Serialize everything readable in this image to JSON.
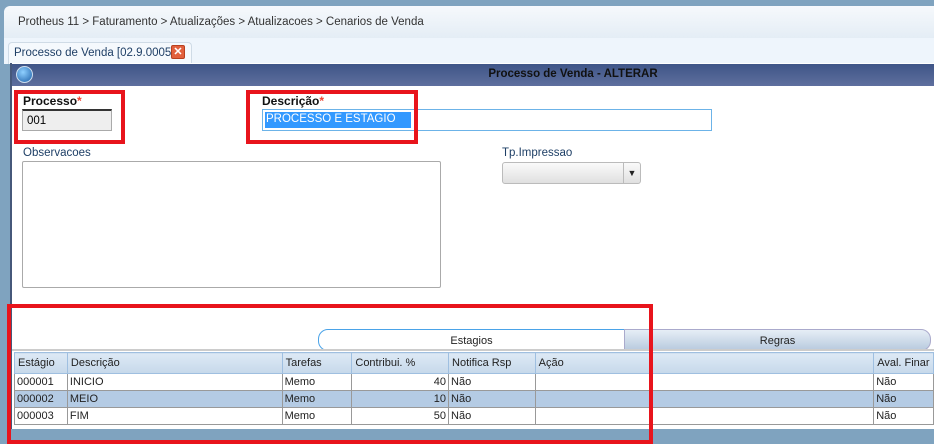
{
  "breadcrumb": "Protheus 11 > Faturamento > Atualizações > Atualizacoes > Cenarios de Venda",
  "tab": {
    "label": "Processo de Venda [02.9.0005]",
    "close": "✕"
  },
  "window": {
    "title": "Processo de Venda - ALTERAR"
  },
  "form": {
    "processo": {
      "label": "Processo",
      "required": "*",
      "value": "001"
    },
    "descricao": {
      "label": "Descrição",
      "required": "*",
      "value": "PROCESSO E ESTAGIO"
    },
    "observacoes": {
      "label": "Observacoes",
      "value": ""
    },
    "tp_impressao": {
      "label": "Tp.Impressao",
      "value": ""
    }
  },
  "subtabs": [
    "Estagios",
    "Regras"
  ],
  "grid": {
    "columns": [
      "Estágio",
      "Descrição",
      "Tarefas",
      "Contribui. %",
      "Notifica Rsp",
      "Ação",
      "Aval. Finar"
    ],
    "rows": [
      [
        "000001",
        "INICIO",
        "Memo",
        "40",
        "Não",
        "",
        "Não"
      ],
      [
        "000002",
        "MEIO",
        "Memo",
        "10",
        "Não",
        "",
        "Não"
      ],
      [
        "000003",
        "FIM",
        "Memo",
        "50",
        "Não",
        "",
        "Não"
      ]
    ],
    "selected_row": 1
  },
  "colors": {
    "highlight": "#e8141c",
    "title_bar": "#46587a",
    "selected_row": "#b4cbe4"
  }
}
